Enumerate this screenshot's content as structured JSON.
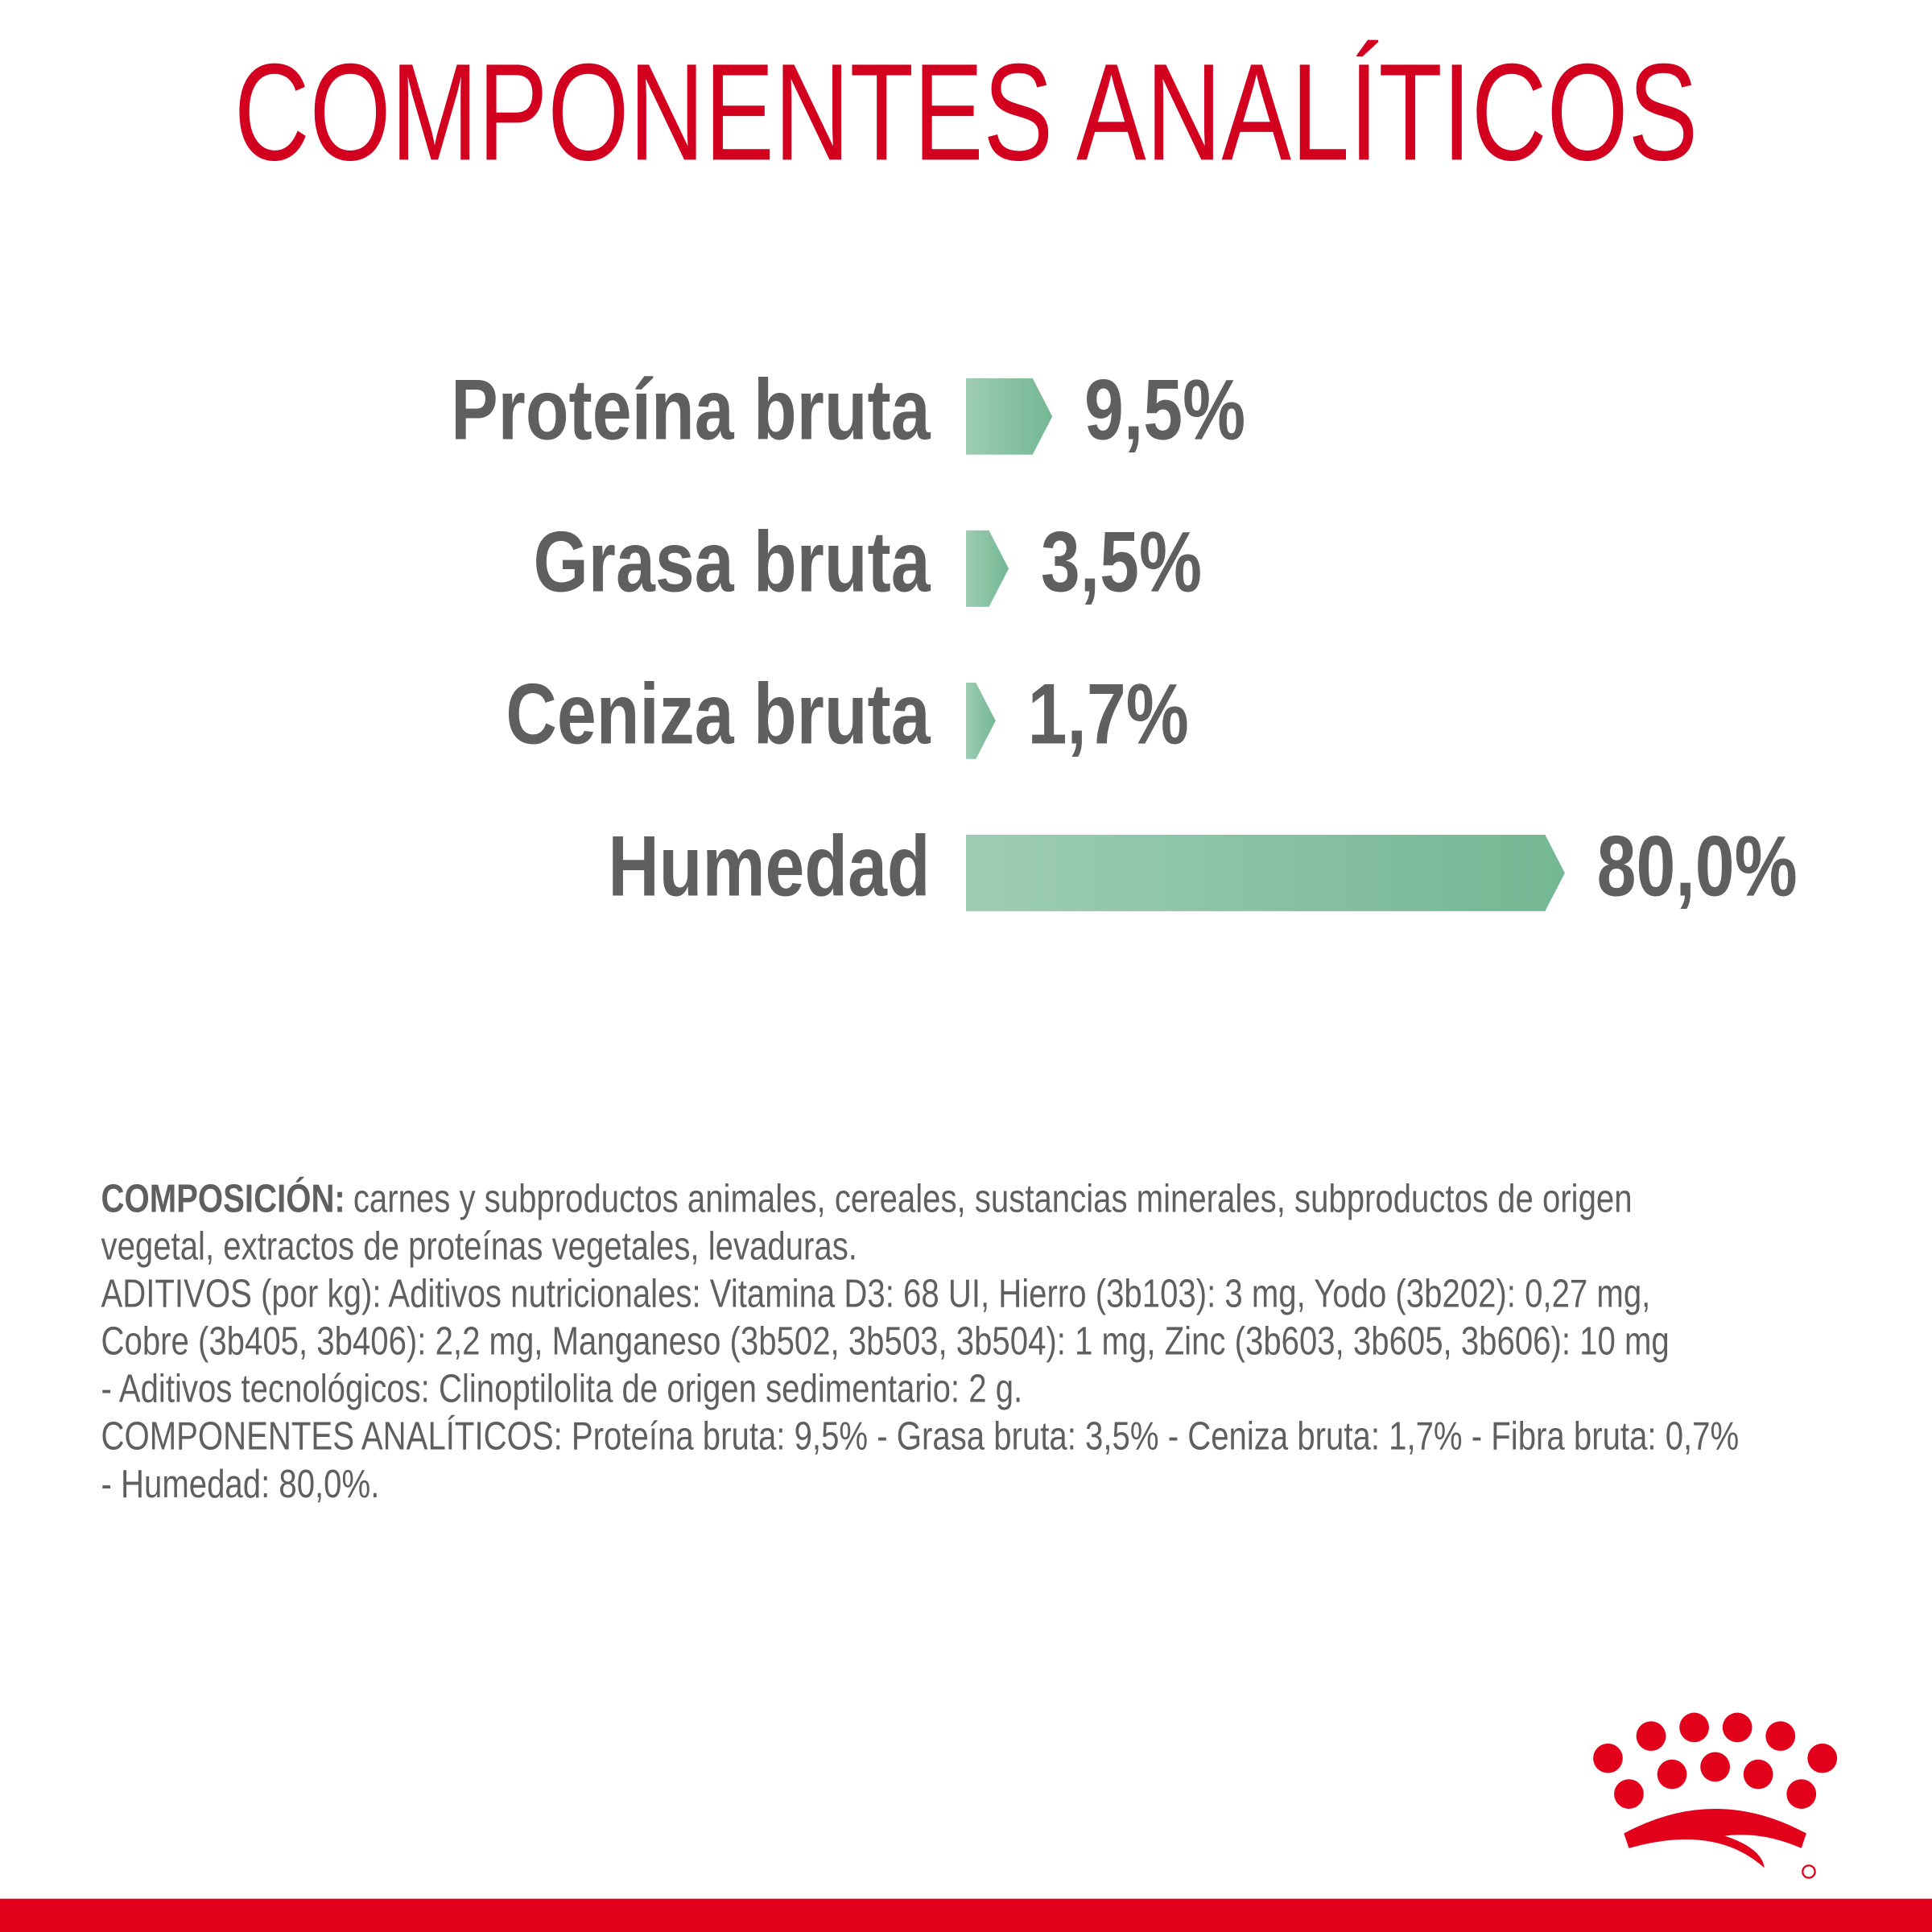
{
  "chart_data": {
    "type": "hbar",
    "title": "COMPONENTES ANALÍTICOS",
    "categories": [
      "Proteína bruta",
      "Grasa bruta",
      "Ceniza bruta",
      "Humedad"
    ],
    "values": [
      9.5,
      3.5,
      1.7,
      80.0
    ],
    "value_labels": [
      "9,5%",
      "3,5%",
      "1,7%",
      "80,0%"
    ],
    "color": "#74b793"
  },
  "composition": {
    "heading": "COMPOSICIÓN:",
    "lines": [
      "carnes y subproductos animales, cereales, sustancias minerales, subproductos de origen",
      "vegetal, extractos de proteínas vegetales, levaduras.",
      "ADITIVOS (por kg): Aditivos nutricionales: Vitamina D3: 68 UI, Hierro (3b103): 3 mg, Yodo (3b202): 0,27 mg,",
      "Cobre (3b405, 3b406): 2,2 mg, Manganeso (3b502, 3b503, 3b504): 1 mg, Zinc (3b603, 3b605, 3b606): 10 mg",
      "- Aditivos tecnológicos: Clinoptilolita de origen sedimentario: 2 g.",
      "COMPONENTES ANALÍTICOS: Proteína bruta: 9,5% - Grasa bruta: 3,5% - Ceniza bruta: 1,7% - Fibra bruta: 0,7%",
      "- Humedad: 80,0%."
    ]
  }
}
